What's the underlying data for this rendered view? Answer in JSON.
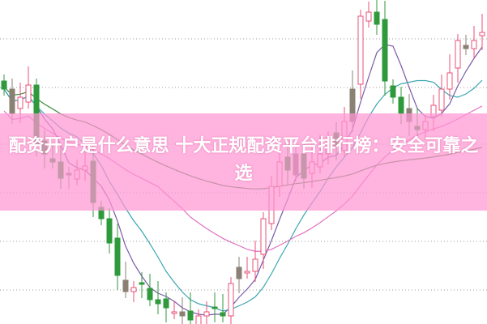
{
  "title": "配资开户是什么意思 十大正规配资平台排行榜：安全可靠之选",
  "chart_data": {
    "type": "candlestick",
    "grid": "horizontal dotted",
    "colors": {
      "up": "#e8507a",
      "down": "#2f9a3c",
      "neutral": "#8a8074",
      "ma": [
        "#7a5aa8",
        "#3aa6b0",
        "#e070c0",
        "#3a8a3a"
      ],
      "banner": "#ff96d2"
    },
    "closes": [
      290,
      260,
      280,
      295,
      220,
      210,
      200,
      180,
      185,
      190,
      195,
      150,
      130,
      100,
      60,
      40,
      45,
      50,
      30,
      25,
      20,
      15,
      10,
      5,
      10,
      15,
      20,
      10,
      50,
      70,
      65,
      80,
      130,
      170,
      200,
      190,
      210,
      180,
      200,
      210,
      230,
      220,
      250,
      290,
      380,
      385,
      370,
      300,
      280,
      260,
      250,
      240,
      250,
      270,
      290,
      310,
      350,
      340,
      350,
      360
    ],
    "moving_averages": [
      5,
      10,
      20,
      60
    ]
  }
}
